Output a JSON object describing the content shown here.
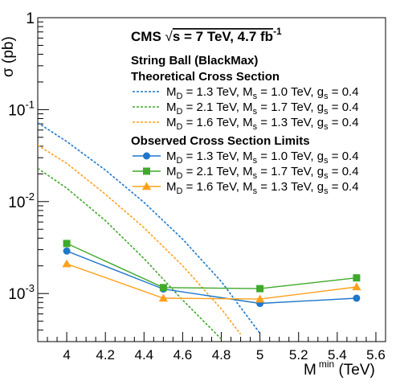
{
  "chart_data": {
    "type": "line",
    "header": {
      "experiment": "CMS",
      "sqrt_symbol": "√",
      "energy_text": "s = 7 TeV, 4.7 fb",
      "lumi_superscript": "-1"
    },
    "model_title": "String Ball (BlackMax)",
    "xlabel": {
      "main": "M",
      "sup": "min",
      "unit": "(TeV)"
    },
    "ylabel": "σ (pb)",
    "xlim": [
      3.85,
      5.65
    ],
    "ylim": [
      0.0003,
      1
    ],
    "yscale": "log",
    "x_ticks": [
      {
        "value": 4.0,
        "label": "4"
      },
      {
        "value": 4.2,
        "label": "4.2"
      },
      {
        "value": 4.4,
        "label": "4.4"
      },
      {
        "value": 4.6,
        "label": "4.6"
      },
      {
        "value": 4.8,
        "label": "4.8"
      },
      {
        "value": 5.0,
        "label": "5"
      },
      {
        "value": 5.2,
        "label": "5.2"
      },
      {
        "value": 5.4,
        "label": "5.4"
      },
      {
        "value": 5.6,
        "label": "5.6"
      }
    ],
    "y_ticks": [
      {
        "value": 1,
        "base": "1",
        "exp": ""
      },
      {
        "value": 0.1,
        "base": "10",
        "exp": "-1"
      },
      {
        "value": 0.01,
        "base": "10",
        "exp": "-2"
      },
      {
        "value": 0.001,
        "base": "10",
        "exp": "-3"
      }
    ],
    "legend_sections": [
      {
        "heading": "Theoretical Cross Section",
        "entries": [
          {
            "label": {
              "md": "1.3",
              "ms": "1.0",
              "gs": "0.4"
            },
            "color": "#1f77c9",
            "style": "dotted"
          },
          {
            "label": {
              "md": "2.1",
              "ms": "1.7",
              "gs": "0.4"
            },
            "color": "#3fa92a",
            "style": "dotted"
          },
          {
            "label": {
              "md": "1.6",
              "ms": "1.3",
              "gs": "0.4"
            },
            "color": "#ffa01c",
            "style": "dotted"
          }
        ]
      },
      {
        "heading": "Observed Cross Section Limits",
        "entries": [
          {
            "label": {
              "md": "1.3",
              "ms": "1.0",
              "gs": "0.4"
            },
            "color": "#1f77c9",
            "style": "solid",
            "marker": "circle"
          },
          {
            "label": {
              "md": "2.1",
              "ms": "1.7",
              "gs": "0.4"
            },
            "color": "#3fa92a",
            "style": "solid",
            "marker": "square"
          },
          {
            "label": {
              "md": "1.6",
              "ms": "1.3",
              "gs": "0.4"
            },
            "color": "#ffa01c",
            "style": "solid",
            "marker": "triangle"
          }
        ]
      }
    ],
    "theory_series": [
      {
        "color": "#1f77c9",
        "x": [
          3.85,
          4.0,
          4.2,
          4.4,
          4.6,
          4.8,
          5.0
        ],
        "y": [
          0.072,
          0.045,
          0.022,
          0.0098,
          0.0039,
          0.00135,
          0.00037
        ]
      },
      {
        "color": "#3fa92a",
        "x": [
          3.85,
          4.0,
          4.2,
          4.4,
          4.6,
          4.8
        ],
        "y": [
          0.023,
          0.014,
          0.0062,
          0.0024,
          0.00085,
          0.00032
        ]
      },
      {
        "color": "#ffa01c",
        "x": [
          3.85,
          4.0,
          4.2,
          4.4,
          4.6,
          4.8,
          4.9
        ],
        "y": [
          0.041,
          0.026,
          0.012,
          0.0052,
          0.002,
          0.00068,
          0.00036
        ]
      }
    ],
    "observed_series": [
      {
        "color": "#1f77c9",
        "marker": "circle",
        "x": [
          4.0,
          4.5,
          5.0,
          5.5
        ],
        "y": [
          0.0029,
          0.00112,
          0.00078,
          0.00089
        ]
      },
      {
        "color": "#3fa92a",
        "marker": "square",
        "x": [
          4.0,
          4.5,
          5.0,
          5.5
        ],
        "y": [
          0.0035,
          0.00116,
          0.00113,
          0.00148
        ]
      },
      {
        "color": "#ffa01c",
        "marker": "triangle",
        "x": [
          4.0,
          4.5,
          5.0,
          5.5
        ],
        "y": [
          0.0021,
          0.00089,
          0.00087,
          0.00118
        ]
      }
    ]
  }
}
